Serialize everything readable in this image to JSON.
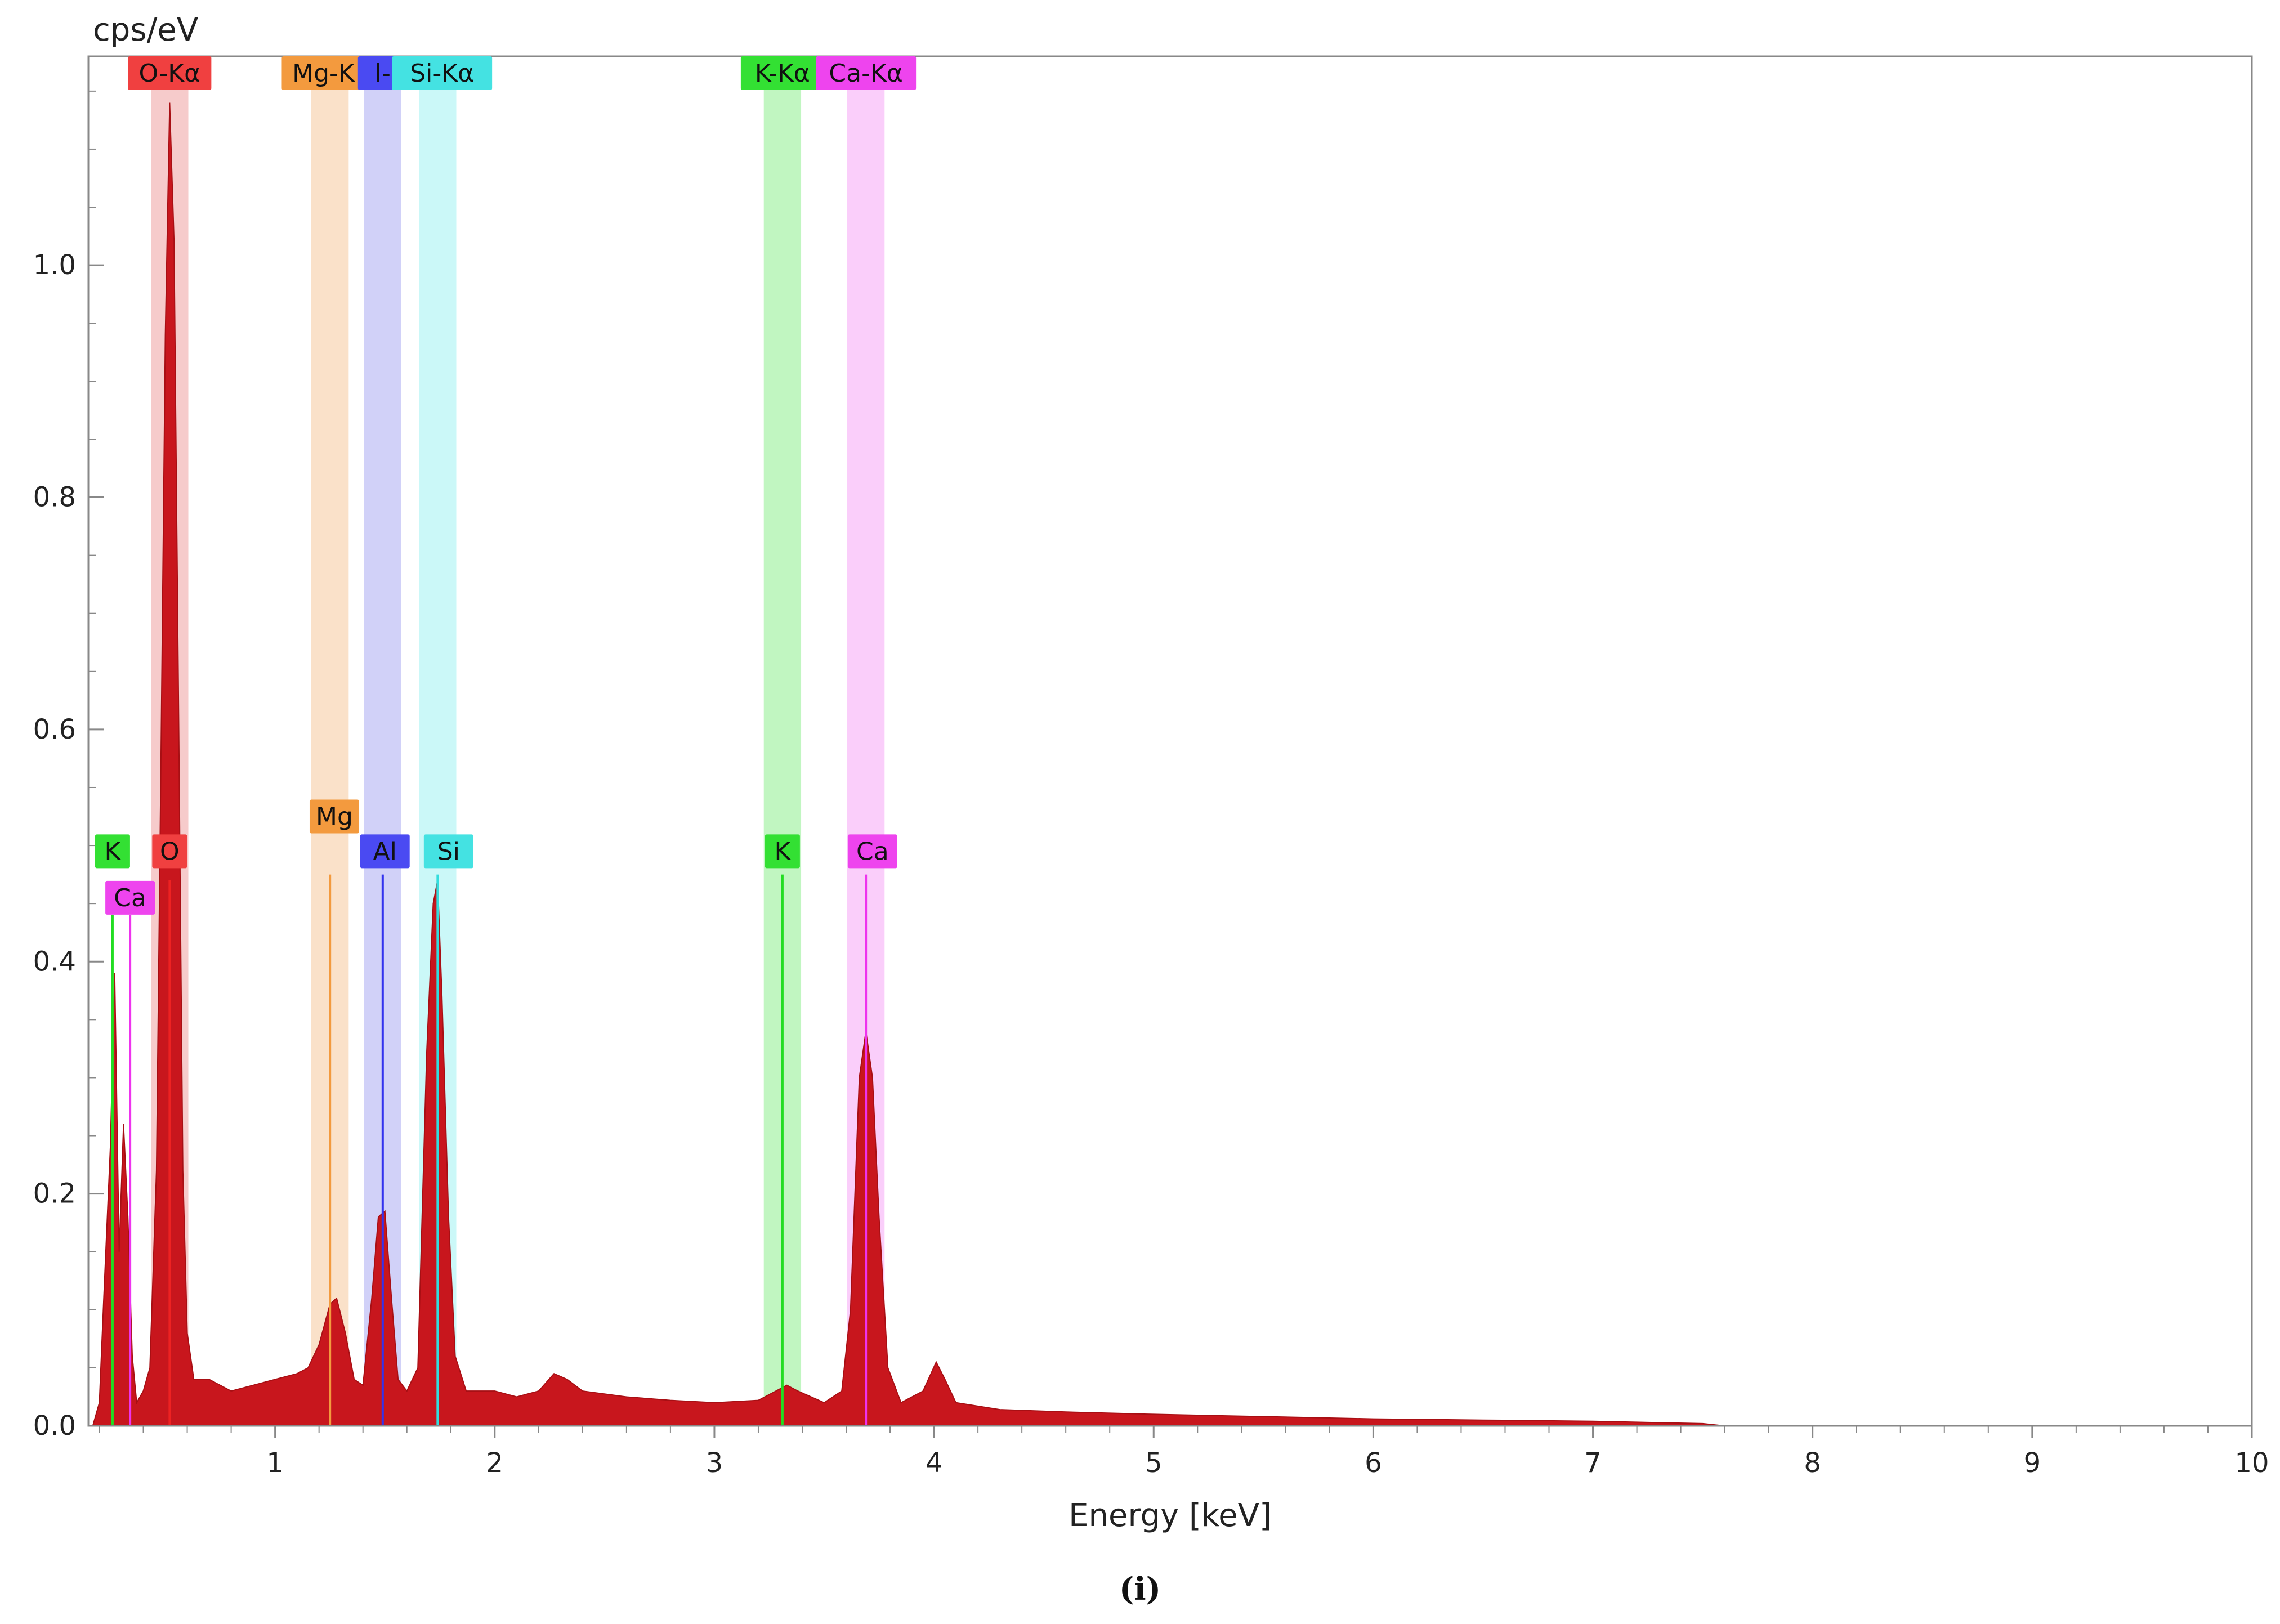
{
  "chart_data": {
    "type": "area",
    "ylabel": "cps/eV",
    "xlabel": "Energy [keV]",
    "xlim": [
      0.15,
      10
    ],
    "ylim": [
      0,
      1.18
    ],
    "x_ticks": [
      1,
      2,
      3,
      4,
      5,
      6,
      7,
      8,
      9,
      10
    ],
    "y_ticks": [
      0.0,
      0.2,
      0.4,
      0.6,
      0.8,
      1.0
    ],
    "y_tick_labels": [
      "0.0",
      "0.2",
      "0.4",
      "0.6",
      "0.8",
      "1.0"
    ],
    "grid": false,
    "spectrum_color": "#c8161d",
    "spectrum": [
      [
        0.17,
        0.0
      ],
      [
        0.2,
        0.02
      ],
      [
        0.22,
        0.11
      ],
      [
        0.25,
        0.24
      ],
      [
        0.27,
        0.39
      ],
      [
        0.29,
        0.15
      ],
      [
        0.31,
        0.26
      ],
      [
        0.33,
        0.18
      ],
      [
        0.35,
        0.06
      ],
      [
        0.37,
        0.02
      ],
      [
        0.4,
        0.03
      ],
      [
        0.43,
        0.05
      ],
      [
        0.46,
        0.22
      ],
      [
        0.48,
        0.57
      ],
      [
        0.5,
        0.94
      ],
      [
        0.52,
        1.14
      ],
      [
        0.54,
        1.02
      ],
      [
        0.56,
        0.63
      ],
      [
        0.58,
        0.22
      ],
      [
        0.6,
        0.08
      ],
      [
        0.63,
        0.04
      ],
      [
        0.7,
        0.04
      ],
      [
        0.8,
        0.03
      ],
      [
        0.9,
        0.035
      ],
      [
        1.0,
        0.04
      ],
      [
        1.1,
        0.045
      ],
      [
        1.15,
        0.05
      ],
      [
        1.2,
        0.07
      ],
      [
        1.25,
        0.105
      ],
      [
        1.28,
        0.11
      ],
      [
        1.32,
        0.08
      ],
      [
        1.36,
        0.04
      ],
      [
        1.4,
        0.035
      ],
      [
        1.44,
        0.11
      ],
      [
        1.47,
        0.18
      ],
      [
        1.5,
        0.185
      ],
      [
        1.53,
        0.11
      ],
      [
        1.56,
        0.04
      ],
      [
        1.6,
        0.03
      ],
      [
        1.65,
        0.05
      ],
      [
        1.69,
        0.32
      ],
      [
        1.72,
        0.45
      ],
      [
        1.74,
        0.47
      ],
      [
        1.76,
        0.37
      ],
      [
        1.79,
        0.18
      ],
      [
        1.82,
        0.06
      ],
      [
        1.87,
        0.03
      ],
      [
        2.0,
        0.03
      ],
      [
        2.1,
        0.025
      ],
      [
        2.2,
        0.03
      ],
      [
        2.27,
        0.045
      ],
      [
        2.33,
        0.04
      ],
      [
        2.4,
        0.03
      ],
      [
        2.6,
        0.025
      ],
      [
        2.8,
        0.022
      ],
      [
        3.0,
        0.02
      ],
      [
        3.2,
        0.022
      ],
      [
        3.28,
        0.03
      ],
      [
        3.33,
        0.035
      ],
      [
        3.38,
        0.03
      ],
      [
        3.5,
        0.02
      ],
      [
        3.58,
        0.03
      ],
      [
        3.62,
        0.1
      ],
      [
        3.66,
        0.3
      ],
      [
        3.69,
        0.34
      ],
      [
        3.72,
        0.3
      ],
      [
        3.75,
        0.18
      ],
      [
        3.79,
        0.05
      ],
      [
        3.85,
        0.02
      ],
      [
        3.95,
        0.03
      ],
      [
        4.01,
        0.055
      ],
      [
        4.05,
        0.04
      ],
      [
        4.1,
        0.02
      ],
      [
        4.3,
        0.014
      ],
      [
        4.6,
        0.012
      ],
      [
        5.0,
        0.01
      ],
      [
        5.5,
        0.008
      ],
      [
        6.0,
        0.006
      ],
      [
        6.5,
        0.005
      ],
      [
        7.0,
        0.004
      ],
      [
        7.5,
        0.002
      ],
      [
        7.6,
        0.0
      ]
    ],
    "element_lines": [
      {
        "element": "K",
        "label": "K",
        "band_label": "K-Kα",
        "energy": 3.31,
        "color": "#22dd22",
        "band_color": "#b6f5b6",
        "low_line": 0.26
      },
      {
        "element": "Ca",
        "label": "Ca",
        "band_label": "Ca-Kα",
        "energy": 3.69,
        "color": "#ee33ee",
        "band_color": "#f9c6f9",
        "low_line": 0.34
      },
      {
        "element": "O",
        "label": "O",
        "band_label": "O-Kα",
        "energy": 0.52,
        "color": "#ee2222",
        "band_color": "#f5c2c2"
      },
      {
        "element": "Mg",
        "label": "Mg",
        "band_label": "Mg-K",
        "energy": 1.25,
        "color": "#f39a3e",
        "band_color": "#f9dcbf"
      },
      {
        "element": "Al",
        "label": "Al",
        "band_label": "l-",
        "energy": 1.49,
        "color": "#3333ee",
        "band_color": "#c9c9f7"
      },
      {
        "element": "Si",
        "label": "Si",
        "band_label": "Si-Kα",
        "energy": 1.74,
        "color": "#33dddd",
        "band_color": "#c2f7f7"
      }
    ]
  },
  "caption": "(i)"
}
